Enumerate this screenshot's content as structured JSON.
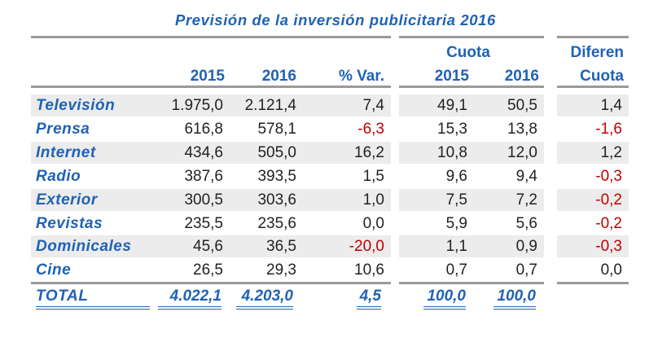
{
  "title": "Previsión de la inversión publicitaria 2016",
  "headers": {
    "y2015": "2015",
    "y2016": "2016",
    "var": "% Var.",
    "cuota": "Cuota",
    "cuota2015": "2015",
    "cuota2016": "2016",
    "diferen": "Diferen",
    "diferen_cuota": "Cuota"
  },
  "rows": [
    {
      "label": "Televisión",
      "v2015": "1.975,0",
      "v2016": "2.121,4",
      "var": "7,4",
      "c2015": "49,1",
      "c2016": "50,5",
      "diff": "1,4"
    },
    {
      "label": "Prensa",
      "v2015": "616,8",
      "v2016": "578,1",
      "var": "-6,3",
      "c2015": "15,3",
      "c2016": "13,8",
      "diff": "-1,6"
    },
    {
      "label": "Internet",
      "v2015": "434,6",
      "v2016": "505,0",
      "var": "16,2",
      "c2015": "10,8",
      "c2016": "12,0",
      "diff": "1,2"
    },
    {
      "label": "Radio",
      "v2015": "387,6",
      "v2016": "393,5",
      "var": "1,5",
      "c2015": "9,6",
      "c2016": "9,4",
      "diff": "-0,3"
    },
    {
      "label": "Exterior",
      "v2015": "300,5",
      "v2016": "303,6",
      "var": "1,0",
      "c2015": "7,5",
      "c2016": "7,2",
      "diff": "-0,2"
    },
    {
      "label": "Revistas",
      "v2015": "235,5",
      "v2016": "235,6",
      "var": "0,0",
      "c2015": "5,9",
      "c2016": "5,6",
      "diff": "-0,2"
    },
    {
      "label": "Dominicales",
      "v2015": "45,6",
      "v2016": "36,5",
      "var": "-20,0",
      "c2015": "1,1",
      "c2016": "0,9",
      "diff": "-0,3"
    },
    {
      "label": "Cine",
      "v2015": "26,5",
      "v2016": "29,3",
      "var": "10,6",
      "c2015": "0,7",
      "c2016": "0,7",
      "diff": "0,0"
    }
  ],
  "total": {
    "label": "TOTAL",
    "v2015": "4.022,1",
    "v2016": "4.203,0",
    "var": "4,5",
    "c2015": "100,0",
    "c2016": "100,0"
  },
  "colors": {
    "accent": "#1f62b6",
    "negative": "#c00000",
    "band": "#ececec",
    "rule": "#9a9a9a"
  }
}
